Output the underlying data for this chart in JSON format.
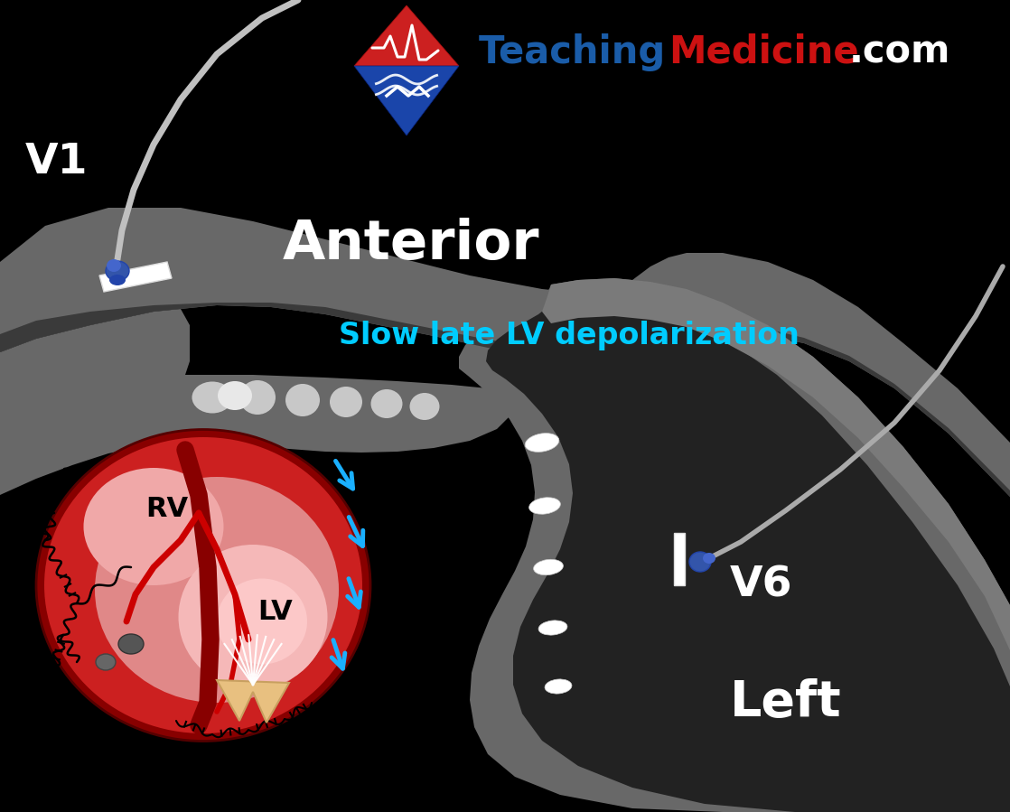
{
  "bg_color": "#000000",
  "title_teaching": "Teaching",
  "title_medicine": "Medicine",
  "title_com": ".com",
  "text_anterior": "Anterior",
  "text_slow": "Slow late LV depolarization",
  "text_rv": "RV",
  "text_lv": "LV",
  "text_v1": "V1",
  "text_v6": "V6",
  "text_left": "Left",
  "color_teaching": "#1a5ca8",
  "color_medicine": "#cc1111",
  "color_com": "#ffffff",
  "color_anterior": "#ffffff",
  "color_slow": "#00ccff",
  "color_rv_lv": "#000000",
  "color_v1_v6": "#ffffff",
  "color_left": "#ffffff",
  "heart_red": "#cc2020",
  "heart_pink": "#e88080",
  "heart_lv_pink": "#f0b0b0",
  "heart_dark_red": "#880000",
  "arrow_color": "#1ab0ff",
  "spine_gray": "#808080",
  "spine_light": "#aaaaaa",
  "spine_dark": "#444444",
  "body_gray": "#686868",
  "body_dark": "#3a3a3a",
  "wire_gray": "#aaaaaa",
  "electrode_blue": "#3355aa",
  "electrode_white": "#e8e8e8"
}
